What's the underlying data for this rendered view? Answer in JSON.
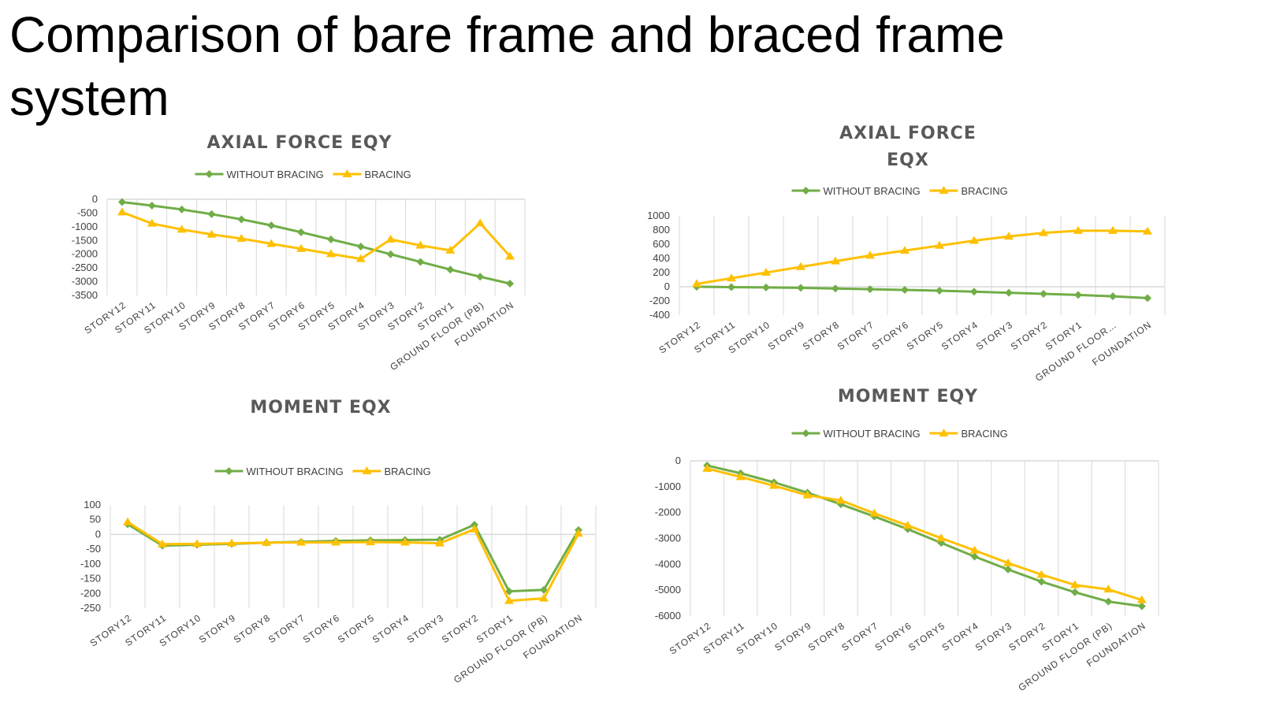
{
  "slide": {
    "title": "Comparison of bare frame and braced frame system"
  },
  "colors": {
    "without_bracing": "#70ad47",
    "bracing": "#ffc000",
    "grid": "#d9d9d9"
  },
  "chart_data": [
    {
      "id": "axial-eqy",
      "type": "line",
      "title_lines": [
        "AXIAL FORCE EQY"
      ],
      "categories": [
        "STORY12",
        "STORY11",
        "STORY10",
        "STORY9",
        "STORY8",
        "STORY7",
        "STORY6",
        "STORY5",
        "STORY4",
        "STORY3",
        "STORY2",
        "STORY1",
        "GROUND FLOOR (PB)",
        "FOUNDATION"
      ],
      "ylim": [
        -3500,
        0
      ],
      "yticks": [
        0,
        -500,
        -1000,
        -1500,
        -2000,
        -2500,
        -3000,
        -3500
      ],
      "series": [
        {
          "name": "WITHOUT BRACING",
          "values": [
            -100,
            -230,
            -370,
            -540,
            -730,
            -950,
            -1200,
            -1460,
            -1720,
            -2000,
            -2280,
            -2560,
            -2820,
            -3070
          ]
        },
        {
          "name": "BRACING",
          "values": [
            -470,
            -880,
            -1100,
            -1280,
            -1430,
            -1620,
            -1800,
            -1990,
            -2170,
            -1460,
            -1680,
            -1860,
            -870,
            -2080
          ]
        }
      ]
    },
    {
      "id": "axial-eqx",
      "type": "line",
      "title_lines": [
        "AXIAL FORCE",
        "EQX"
      ],
      "categories": [
        "STORY12",
        "STORY11",
        "STORY10",
        "STORY9",
        "STORY8",
        "STORY7",
        "STORY6",
        "STORY5",
        "STORY4",
        "STORY3",
        "STORY2",
        "STORY1",
        "GROUND FLOOR…",
        "FOUNDATION"
      ],
      "ylim": [
        -400,
        1000
      ],
      "yticks": [
        1000,
        800,
        600,
        400,
        200,
        0,
        -200,
        -400
      ],
      "series": [
        {
          "name": "WITHOUT BRACING",
          "values": [
            0,
            -5,
            -10,
            -15,
            -25,
            -35,
            -45,
            -55,
            -70,
            -85,
            -100,
            -115,
            -135,
            -160
          ]
        },
        {
          "name": "BRACING",
          "values": [
            40,
            120,
            200,
            280,
            360,
            440,
            510,
            580,
            650,
            710,
            760,
            790,
            790,
            780
          ]
        }
      ]
    },
    {
      "id": "moment-eqx",
      "type": "line",
      "title_lines": [
        "MOMENT EQX"
      ],
      "categories": [
        "STORY12",
        "STORY11",
        "STORY10",
        "STORY9",
        "STORY8",
        "STORY7",
        "STORY6",
        "STORY5",
        "STORY4",
        "STORY3",
        "STORY2",
        "STORY1",
        "GROUND FLOOR (PB)",
        "FOUNDATION"
      ],
      "ylim": [
        -250,
        100
      ],
      "yticks": [
        100,
        50,
        0,
        -50,
        -100,
        -150,
        -200,
        -250
      ],
      "series": [
        {
          "name": "WITHOUT BRACING",
          "values": [
            35,
            -38,
            -35,
            -32,
            -28,
            -25,
            -22,
            -20,
            -19,
            -18,
            33,
            -193,
            -188,
            15
          ]
        },
        {
          "name": "BRACING",
          "values": [
            42,
            -33,
            -32,
            -30,
            -28,
            -27,
            -27,
            -26,
            -27,
            -30,
            18,
            -225,
            -217,
            3
          ]
        }
      ]
    },
    {
      "id": "moment-eqy",
      "type": "line",
      "title_lines": [
        "MOMENT EQY"
      ],
      "categories": [
        "STORY12",
        "STORY11",
        "STORY10",
        "STORY9",
        "STORY8",
        "STORY7",
        "STORY6",
        "STORY5",
        "STORY4",
        "STORY3",
        "STORY2",
        "STORY1",
        "GROUND FLOOR (PB)",
        "FOUNDATION"
      ],
      "ylim": [
        -6000,
        0
      ],
      "yticks": [
        0,
        -1000,
        -2000,
        -3000,
        -4000,
        -5000,
        -6000
      ],
      "series": [
        {
          "name": "WITHOUT BRACING",
          "values": [
            -180,
            -480,
            -830,
            -1230,
            -1680,
            -2150,
            -2640,
            -3170,
            -3700,
            -4200,
            -4670,
            -5080,
            -5440,
            -5620
          ]
        },
        {
          "name": "BRACING",
          "values": [
            -300,
            -620,
            -960,
            -1330,
            -1530,
            -2030,
            -2500,
            -2990,
            -3460,
            -3950,
            -4400,
            -4800,
            -4970,
            -5380
          ]
        }
      ]
    }
  ]
}
